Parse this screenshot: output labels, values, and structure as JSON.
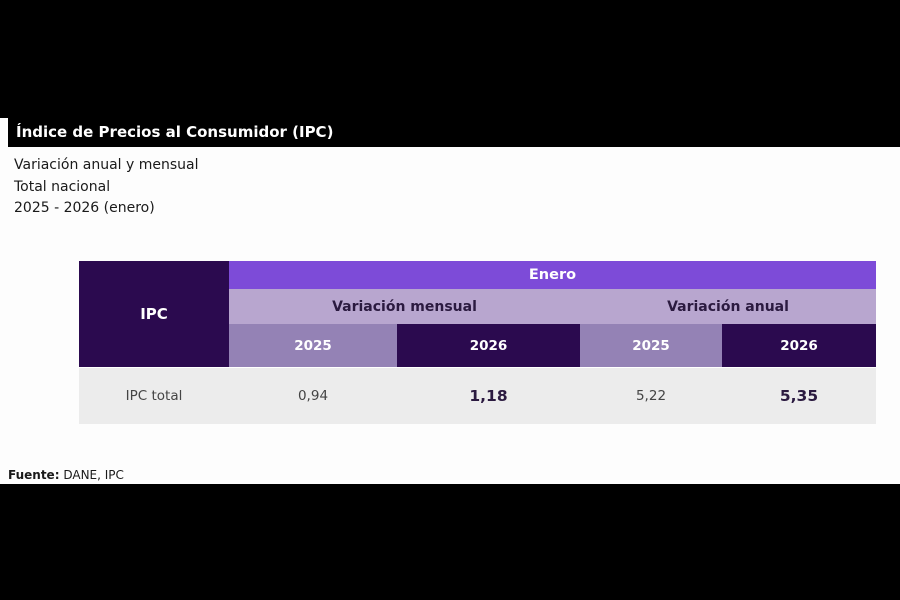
{
  "header": {
    "title": "Índice de Precios al Consumidor (IPC)",
    "subtitles": [
      "Variación anual y mensual",
      "Total nacional",
      "2025 - 2026 (enero)"
    ]
  },
  "table": {
    "corner_label": "IPC",
    "period_label": "Enero",
    "groups": [
      "Variación mensual",
      "Variación anual"
    ],
    "years": [
      "2025",
      "2026",
      "2025",
      "2026"
    ],
    "rows": [
      {
        "label": "IPC total",
        "values": [
          "0,94",
          "1,18",
          "5,22",
          "5,35"
        ]
      }
    ]
  },
  "source": {
    "label": "Fuente:",
    "text": "DANE, IPC"
  },
  "colors": {
    "dark_purple": "#2b0a4f",
    "accent_purple": "#7d4bd8",
    "lavender": "#b8a6cf",
    "muted_purple": "#9482b5",
    "row_gray": "#ececec"
  }
}
